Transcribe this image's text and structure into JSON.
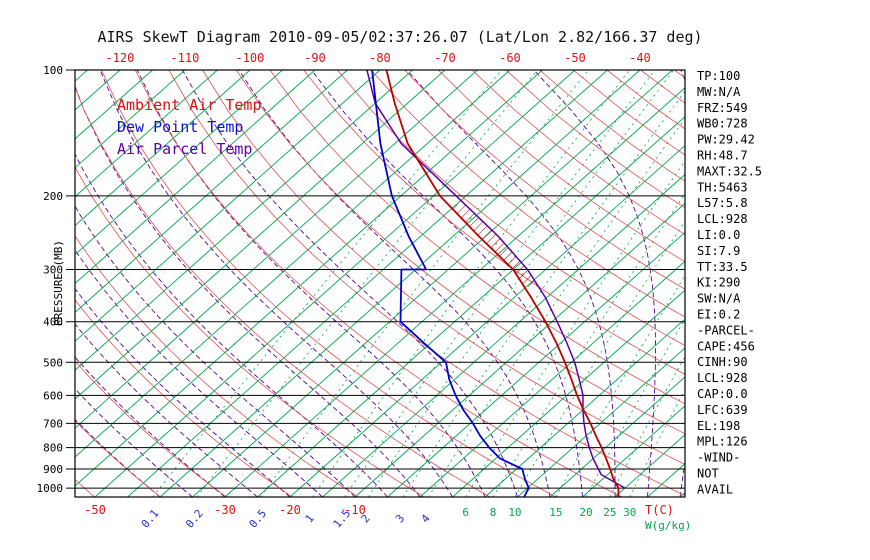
{
  "title": "AIRS SkewT Diagram 2010-09-05/02:37:26.07 (Lat/Lon 2.82/166.37 deg)",
  "legend": {
    "ambient": {
      "label": "Ambient Air Temp",
      "color": "#dd1111"
    },
    "dewpoint": {
      "label": "Dew Point Temp",
      "color": "#1111cc"
    },
    "parcel": {
      "label": "Air Parcel Temp",
      "color": "#5b00a5"
    }
  },
  "axes": {
    "pressure_axis_label": "PRESSURE (MB)",
    "pressure_ticks": [
      100,
      200,
      300,
      400,
      500,
      600,
      700,
      800,
      900,
      1000
    ],
    "top_temperature_ticks": [
      -120,
      -110,
      -100,
      -90,
      -80,
      -70,
      -60,
      -50,
      -40
    ],
    "bottom_temperature_ticks": [
      -50,
      -30,
      -20,
      -10
    ],
    "temperature_unit_label": "T(C)",
    "mixing_ratio_unit_label": "W(g/kg)"
  },
  "stats_panel": {
    "lines": [
      "TP:100",
      "MW:N/A",
      "FRZ:549",
      "WB0:728",
      "PW:29.42",
      "RH:48.7",
      "MAXT:32.5",
      "TH:5463",
      "L57:5.8",
      "LCL:928",
      "LI:0.0",
      "SI:7.9",
      "TT:33.5",
      "KI:290",
      "SW:N/A",
      "EI:0.2",
      "-PARCEL-",
      "CAPE:456",
      "CINH:90",
      "LCL:928",
      "CAP:0.0",
      "LFC:639",
      "EL:198",
      "MPL:126",
      "-WIND-",
      "NOT",
      "AVAIL"
    ]
  },
  "chart_data": {
    "type": "line",
    "title": "AIRS SkewT Diagram 2010-09-05/02:37:26.07 (Lat/Lon 2.82/166.37 deg)",
    "x_axis_label": "Temperature (C), skewed isotherms",
    "y_axis_label": "Pressure (MB), logarithmic",
    "pressure_range": [
      100,
      1050
    ],
    "series": [
      {
        "name": "Ambient Air Temp",
        "color": "#bb0000",
        "points": [
          [
            1050,
            30.5
          ],
          [
            1000,
            29.0
          ],
          [
            950,
            26.6
          ],
          [
            900,
            24.4
          ],
          [
            850,
            22.0
          ],
          [
            800,
            19.4
          ],
          [
            750,
            16.5
          ],
          [
            700,
            13.5
          ],
          [
            650,
            10.1
          ],
          [
            600,
            6.6
          ],
          [
            550,
            3.0
          ],
          [
            500,
            -1.0
          ],
          [
            450,
            -5.6
          ],
          [
            400,
            -11.0
          ],
          [
            350,
            -17.4
          ],
          [
            300,
            -25.0
          ],
          [
            250,
            -36.0
          ],
          [
            200,
            -49.0
          ],
          [
            150,
            -63.0
          ],
          [
            120,
            -72.0
          ],
          [
            100,
            -79.0
          ]
        ]
      },
      {
        "name": "Dew Point Temp",
        "color": "#0000cc",
        "points": [
          [
            1050,
            16.0
          ],
          [
            1000,
            15.2
          ],
          [
            950,
            13.0
          ],
          [
            900,
            10.9
          ],
          [
            850,
            5.7
          ],
          [
            800,
            2.1
          ],
          [
            750,
            -1.3
          ],
          [
            700,
            -4.6
          ],
          [
            650,
            -8.4
          ],
          [
            600,
            -12.1
          ],
          [
            550,
            -15.8
          ],
          [
            500,
            -19.3
          ],
          [
            450,
            -26.0
          ],
          [
            400,
            -33.3
          ],
          [
            300,
            -42.2
          ],
          [
            300,
            -38.4
          ],
          [
            250,
            -46.8
          ],
          [
            200,
            -56.4
          ],
          [
            150,
            -67.2
          ],
          [
            100,
            -81.2
          ]
        ]
      },
      {
        "name": "Air Parcel Temp",
        "color": "#5b00a5",
        "points": [
          [
            1000,
            30.0
          ],
          [
            928,
            24.0
          ],
          [
            850,
            20.0
          ],
          [
            800,
            17.5
          ],
          [
            750,
            15.0
          ],
          [
            700,
            12.5
          ],
          [
            650,
            10.0
          ],
          [
            600,
            7.5
          ],
          [
            550,
            4.2
          ],
          [
            500,
            0.5
          ],
          [
            450,
            -4.0
          ],
          [
            400,
            -9.2
          ],
          [
            350,
            -15.2
          ],
          [
            300,
            -22.8
          ],
          [
            250,
            -33.0
          ],
          [
            200,
            -46.5
          ],
          [
            150,
            -64.0
          ],
          [
            120,
            -75.0
          ],
          [
            100,
            -82.0
          ]
        ]
      }
    ],
    "cape_hatch": {
      "pressure_range": [
        203,
        330
      ],
      "color": "#990000"
    },
    "background": {
      "isotherms_c": {
        "min": -160,
        "max": 45,
        "step": 5,
        "color": "#00a550"
      },
      "dry_adiabats_k": {
        "min": 220,
        "max": 470,
        "step": 10,
        "color": "#e05050"
      },
      "moist_adiabats_start_c": {
        "min": -40,
        "max": 45,
        "step": 5,
        "color": "#550099"
      },
      "mixing_ratios_gkg": [
        0.1,
        0.2,
        0.5,
        1,
        1.5,
        2,
        3,
        4,
        6,
        8,
        10,
        15,
        20,
        25,
        30
      ],
      "mixing_color": "#00a550",
      "mixing_label_blue": "#2233cc",
      "pressure_line_color": "#000000"
    }
  }
}
